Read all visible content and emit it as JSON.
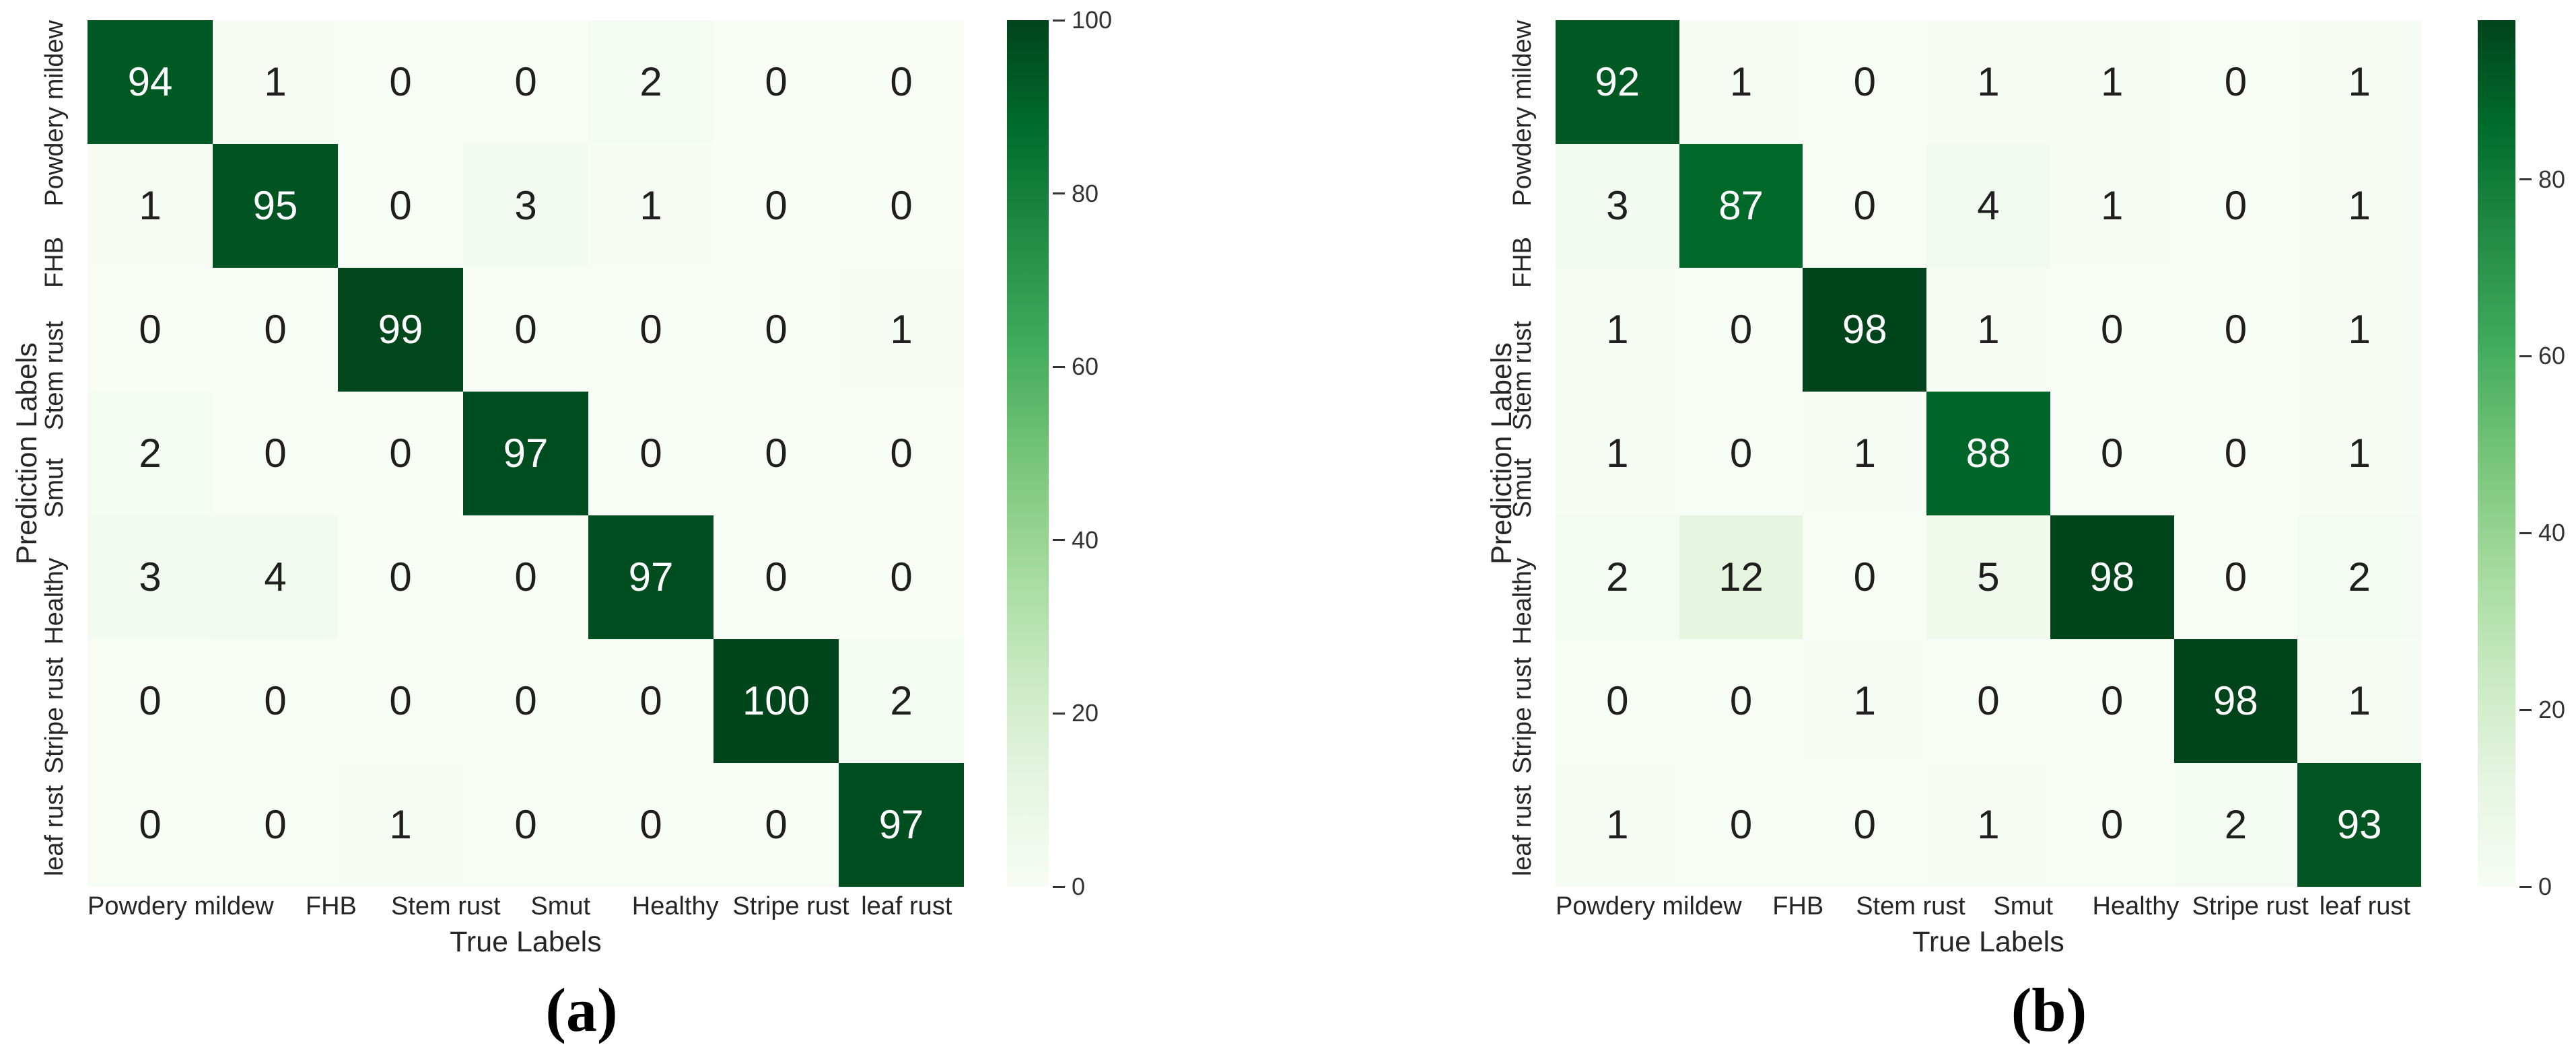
{
  "colors": {
    "background": "#ffffff",
    "cmap_stops": [
      "#f7fcf5",
      "#e5f5e0",
      "#c7e9c0",
      "#a1d99b",
      "#74c476",
      "#41ab5d",
      "#238b45",
      "#006d2c",
      "#00441b"
    ],
    "annot_dark": "#1f1f1f",
    "annot_light": "#ffffff",
    "tick_color": "#262626",
    "colorbar_tick_color": "#333333"
  },
  "chart_data": [
    {
      "type": "heatmap",
      "panel_label": "(a)",
      "xlabel": "True Labels",
      "ylabel": "Prediction Labels",
      "categories_x": [
        "Powdery mildew",
        "FHB",
        "Stem rust",
        "Smut",
        "Healthy",
        "Stripe rust",
        "leaf rust"
      ],
      "categories_y": [
        "Powdery mildew",
        "FHB",
        "Stem rust",
        "Smut",
        "Healthy",
        "Stripe rust",
        "leaf rust"
      ],
      "matrix": [
        [
          94,
          1,
          0,
          0,
          2,
          0,
          0
        ],
        [
          1,
          95,
          0,
          3,
          1,
          0,
          0
        ],
        [
          0,
          0,
          99,
          0,
          0,
          0,
          1
        ],
        [
          2,
          0,
          0,
          97,
          0,
          0,
          0
        ],
        [
          3,
          4,
          0,
          0,
          97,
          0,
          0
        ],
        [
          0,
          0,
          0,
          0,
          0,
          100,
          2
        ],
        [
          0,
          0,
          1,
          0,
          0,
          0,
          97
        ]
      ],
      "vmin": 0,
      "vmax": 100,
      "colorbar_ticks": [
        0,
        20,
        40,
        60,
        80,
        100
      ],
      "colormap": "Greens",
      "grid": false,
      "legend_position": "right-colorbar"
    },
    {
      "type": "heatmap",
      "panel_label": "(b)",
      "xlabel": "True Labels",
      "ylabel": "Prediction Labels",
      "categories_x": [
        "Powdery mildew",
        "FHB",
        "Stem rust",
        "Smut",
        "Healthy",
        "Stripe rust",
        "leaf rust"
      ],
      "categories_y": [
        "Powdery mildew",
        "FHB",
        "Stem rust",
        "Smut",
        "Healthy",
        "Stripe rust",
        "leaf rust"
      ],
      "matrix": [
        [
          92,
          1,
          0,
          1,
          1,
          0,
          1
        ],
        [
          3,
          87,
          0,
          4,
          1,
          0,
          1
        ],
        [
          1,
          0,
          98,
          1,
          0,
          0,
          1
        ],
        [
          1,
          0,
          1,
          88,
          0,
          0,
          1
        ],
        [
          2,
          12,
          0,
          5,
          98,
          0,
          2
        ],
        [
          0,
          0,
          1,
          0,
          0,
          98,
          1
        ],
        [
          1,
          0,
          0,
          1,
          0,
          2,
          93
        ]
      ],
      "vmin": 0,
      "vmax": 98,
      "colorbar_ticks": [
        0,
        20,
        40,
        60,
        80
      ],
      "colormap": "Greens",
      "grid": false,
      "legend_position": "right-colorbar"
    }
  ]
}
